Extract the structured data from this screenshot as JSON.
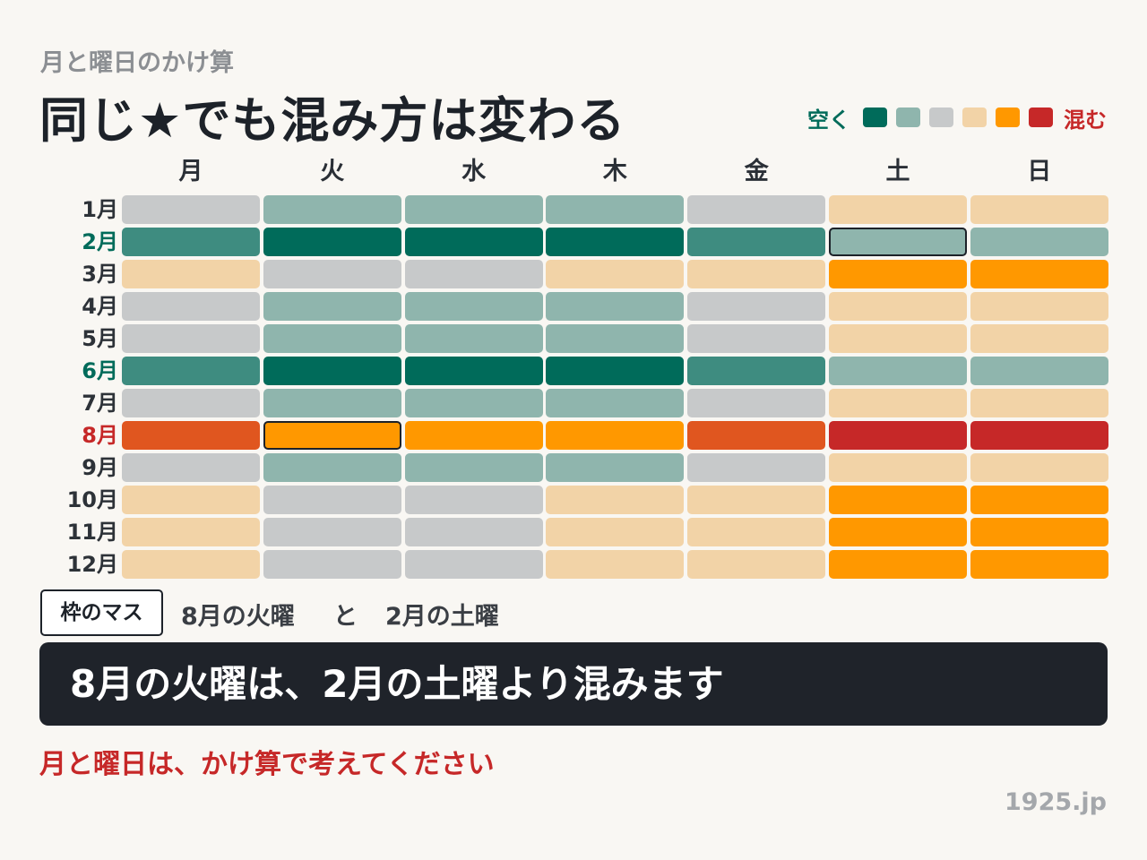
{
  "header": {
    "subtitle": "月と曜日のかけ算",
    "title": "同じ★でも混み方は変わる"
  },
  "legend": {
    "low_label": "空く",
    "high_label": "混む",
    "low_color": "#006b5a",
    "high_color": "#c62828",
    "levels": [
      "#006b5a",
      "#8fb5ad",
      "#c7c9ca",
      "#f2d3a7",
      "#ff9800",
      "#c62828"
    ]
  },
  "chart_data": {
    "type": "heatmap",
    "x_categories": [
      "月",
      "火",
      "水",
      "木",
      "金",
      "土",
      "日"
    ],
    "y_categories": [
      "1月",
      "2月",
      "3月",
      "4月",
      "5月",
      "6月",
      "7月",
      "8月",
      "9月",
      "10月",
      "11月",
      "12月"
    ],
    "y_label_colors": [
      "#2d3238",
      "#006b5a",
      "#2d3238",
      "#2d3238",
      "#2d3238",
      "#006b5a",
      "#2d3238",
      "#c62828",
      "#2d3238",
      "#2d3238",
      "#2d3238",
      "#2d3238"
    ],
    "scale": [
      {
        "level": 0,
        "color": "#006b5a"
      },
      {
        "level": 1,
        "color": "#3e8c80"
      },
      {
        "level": 2,
        "color": "#8fb5ad"
      },
      {
        "level": 3,
        "color": "#c7c9ca"
      },
      {
        "level": 4,
        "color": "#f2d3a7"
      },
      {
        "level": 5,
        "color": "#ff9800"
      },
      {
        "level": 6,
        "color": "#e0561f"
      },
      {
        "level": 7,
        "color": "#c62828"
      }
    ],
    "values": [
      [
        3,
        2,
        2,
        2,
        3,
        4,
        4
      ],
      [
        1,
        0,
        0,
        0,
        1,
        2,
        2
      ],
      [
        4,
        3,
        3,
        4,
        4,
        5,
        5
      ],
      [
        3,
        2,
        2,
        2,
        3,
        4,
        4
      ],
      [
        3,
        2,
        2,
        2,
        3,
        4,
        4
      ],
      [
        1,
        0,
        0,
        0,
        1,
        2,
        2
      ],
      [
        3,
        2,
        2,
        2,
        3,
        4,
        4
      ],
      [
        6,
        5,
        5,
        5,
        6,
        7,
        7
      ],
      [
        3,
        2,
        2,
        2,
        3,
        4,
        4
      ],
      [
        4,
        3,
        3,
        4,
        4,
        5,
        5
      ],
      [
        4,
        3,
        3,
        4,
        4,
        5,
        5
      ],
      [
        4,
        3,
        3,
        4,
        4,
        5,
        5
      ]
    ],
    "highlighted": [
      {
        "month": "2月",
        "day": "土"
      },
      {
        "month": "8月",
        "day": "火"
      }
    ]
  },
  "note": {
    "box_label": "枠のマス",
    "item_a": "8月の火曜",
    "connector": "と",
    "item_b": "2月の土曜"
  },
  "banner": {
    "text": "8月の火曜は、2月の土曜より混みます"
  },
  "advice": "月と曜日は、かけ算で考えてください",
  "credit": "1925.jp"
}
